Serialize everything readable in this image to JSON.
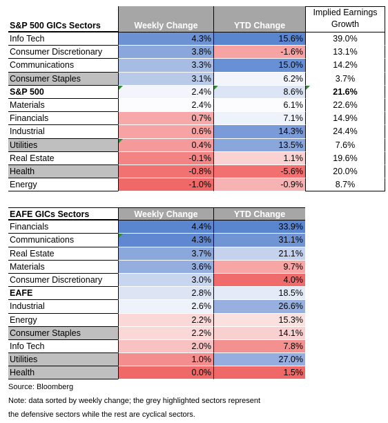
{
  "us_table": {
    "header": {
      "name": "S&P 500 GICs Sectors",
      "weekly": "Weekly Change",
      "ytd": "YTD Change",
      "implied": "Implied Earnings Growth"
    },
    "rows": [
      {
        "name": "Info Tech",
        "weekly": "4.3%",
        "ytd": "15.6%",
        "implied": "39.0%",
        "wk_color": "#6d92d3",
        "ytd_color": "#5a85cf",
        "defensive": false,
        "bold": false
      },
      {
        "name": "Consumer Discretionary",
        "weekly": "3.8%",
        "ytd": "-1.6%",
        "implied": "13.1%",
        "wk_color": "#89a7db",
        "ytd_color": "#f7a3a3",
        "defensive": false,
        "bold": false
      },
      {
        "name": "Communications",
        "weekly": "3.3%",
        "ytd": "15.0%",
        "implied": "14.2%",
        "wk_color": "#a6bce3",
        "ytd_color": "#6791d4",
        "defensive": false,
        "bold": false
      },
      {
        "name": "Consumer Staples",
        "weekly": "3.1%",
        "ytd": "6.2%",
        "implied": "3.7%",
        "wk_color": "#b9cae9",
        "ytd_color": "#f3f5fc",
        "defensive": true,
        "bold": false
      },
      {
        "name": "S&P 500",
        "weekly": "2.4%",
        "ytd": "8.6%",
        "implied": "21.6%",
        "wk_color": "#f2f5fc",
        "ytd_color": "#dce5f5",
        "defensive": false,
        "bold": true
      },
      {
        "name": "Materials",
        "weekly": "2.4%",
        "ytd": "6.1%",
        "implied": "22.6%",
        "wk_color": "#fcfcff",
        "ytd_color": "#fcfcff",
        "defensive": false,
        "bold": false
      },
      {
        "name": "Financials",
        "weekly": "0.7%",
        "ytd": "7.1%",
        "implied": "14.9%",
        "wk_color": "#f7a9a9",
        "ytd_color": "#eef2fb",
        "defensive": false,
        "bold": false
      },
      {
        "name": "Industrial",
        "weekly": "0.6%",
        "ytd": "14.3%",
        "implied": "24.4%",
        "wk_color": "#f7a3a3",
        "ytd_color": "#7a9ad8",
        "defensive": false,
        "bold": false
      },
      {
        "name": "Utilities",
        "weekly": "0.4%",
        "ytd": "13.5%",
        "implied": "7.6%",
        "wk_color": "#f49a9a",
        "ytd_color": "#8aa7dc",
        "defensive": true,
        "bold": false
      },
      {
        "name": "Real Estate",
        "weekly": "-0.1%",
        "ytd": "1.1%",
        "implied": "19.6%",
        "wk_color": "#f38484",
        "ytd_color": "#fbd2d2",
        "defensive": false,
        "bold": false
      },
      {
        "name": "Health",
        "weekly": "-0.8%",
        "ytd": "-5.6%",
        "implied": "20.0%",
        "wk_color": "#f27171",
        "ytd_color": "#f27070",
        "defensive": true,
        "bold": false
      },
      {
        "name": "Energy",
        "weekly": "-1.0%",
        "ytd": "-0.9%",
        "implied": "8.7%",
        "wk_color": "#f06969",
        "ytd_color": "#f7b3b3",
        "defensive": false,
        "bold": false
      }
    ]
  },
  "eafe_table": {
    "header": {
      "name": "EAFE GICs Sectors",
      "weekly": "Weekly Change",
      "ytd": "YTD Change"
    },
    "rows": [
      {
        "name": "Financials",
        "weekly": "4.4%",
        "ytd": "33.9%",
        "wk_color": "#5a85cf",
        "ytd_color": "#5a85cf",
        "defensive": false,
        "bold": false
      },
      {
        "name": "Communications",
        "weekly": "4.3%",
        "ytd": "31.1%",
        "wk_color": "#5f88d0",
        "ytd_color": "#7194d5",
        "defensive": false,
        "bold": false
      },
      {
        "name": "Real Estate",
        "weekly": "3.7%",
        "ytd": "21.1%",
        "wk_color": "#8ba8dd",
        "ytd_color": "#c4d2ee",
        "defensive": false,
        "bold": false
      },
      {
        "name": "Materials",
        "weekly": "3.6%",
        "ytd": "9.7%",
        "wk_color": "#93aedf",
        "ytd_color": "#f7a5a5",
        "defensive": false,
        "bold": false
      },
      {
        "name": "Consumer Discretionary",
        "weekly": "3.0%",
        "ytd": "4.0%",
        "wk_color": "#c8d5ef",
        "ytd_color": "#f06b6b",
        "defensive": false,
        "bold": false
      },
      {
        "name": "EAFE",
        "weekly": "2.8%",
        "ytd": "18.5%",
        "wk_color": "#dde5f5",
        "ytd_color": "#e4eaf7",
        "defensive": false,
        "bold": true
      },
      {
        "name": "Industrial",
        "weekly": "2.6%",
        "ytd": "26.6%",
        "wk_color": "#eef2fb",
        "ytd_color": "#98b0e0",
        "defensive": false,
        "bold": false
      },
      {
        "name": "Energy",
        "weekly": "2.2%",
        "ytd": "15.3%",
        "wk_color": "#fbd8d8",
        "ytd_color": "#fbe0e0",
        "defensive": false,
        "bold": false
      },
      {
        "name": "Consumer Staples",
        "weekly": "2.2%",
        "ytd": "14.1%",
        "wk_color": "#fbd8d8",
        "ytd_color": "#f9d0d0",
        "defensive": true,
        "bold": false
      },
      {
        "name": "Info Tech",
        "weekly": "2.0%",
        "ytd": "7.8%",
        "wk_color": "#f9c2c2",
        "ytd_color": "#f39191",
        "defensive": false,
        "bold": false
      },
      {
        "name": "Utilities",
        "weekly": "1.0%",
        "ytd": "27.0%",
        "wk_color": "#f48e8e",
        "ytd_color": "#95aedf",
        "defensive": true,
        "bold": false
      },
      {
        "name": "Health",
        "weekly": "0.0%",
        "ytd": "1.5%",
        "wk_color": "#f06969",
        "ytd_color": "#f06969",
        "defensive": true,
        "bold": false
      }
    ]
  },
  "notes": {
    "source": "Source: Bloomberg",
    "note_line1": "Note: data sorted by weekly change; the grey highlighted sectors represent",
    "note_line2": "the defensive sectors while the rest are cyclical sectors."
  }
}
